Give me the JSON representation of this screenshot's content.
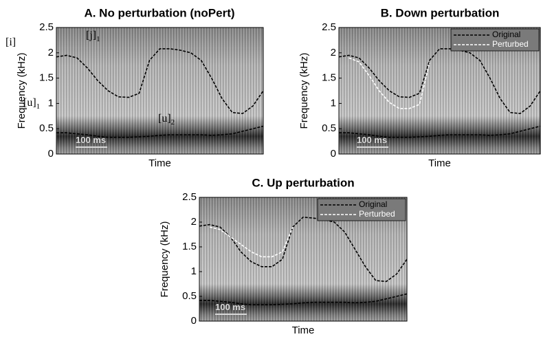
{
  "chart_data": [
    {
      "type": "line",
      "title": "A. No perturbation (noPert)",
      "xlabel": "Time",
      "ylabel": "Frequency (kHz)",
      "ylim": [
        0,
        2.5
      ],
      "yticks": [
        0,
        0.5,
        1,
        1.5,
        2,
        2.5
      ],
      "categories": [
        null,
        null,
        null,
        null,
        null,
        null,
        null,
        null,
        null,
        null,
        null,
        null,
        null,
        null,
        null,
        null,
        null,
        null,
        null,
        null,
        null
      ],
      "series": [
        {
          "color": "#000000",
          "values": [
            1.92,
            1.95,
            1.9,
            1.7,
            1.45,
            1.25,
            1.13,
            1.12,
            1.2,
            1.85,
            2.08,
            2.08,
            2.05,
            2.0,
            1.85,
            1.5,
            1.1,
            0.82,
            0.8,
            0.95,
            1.25
          ]
        },
        {
          "color": "#000000",
          "values": [
            0.42,
            0.42,
            0.4,
            0.38,
            0.35,
            0.33,
            0.33,
            0.33,
            0.34,
            0.35,
            0.37,
            0.38,
            0.38,
            0.38,
            0.38,
            0.37,
            0.38,
            0.4,
            0.45,
            0.5,
            0.55
          ]
        }
      ],
      "annotations": [
        {
          "text": "[i]"
        },
        {
          "text": "[j]",
          "sub": "1"
        },
        {
          "text": "[u]",
          "sub": "1"
        },
        {
          "text": "[u]",
          "sub": "2"
        },
        {
          "text": "100 ms"
        }
      ]
    },
    {
      "type": "line",
      "title": "B. Down perturbation",
      "xlabel": "Time",
      "ylabel": "Frequency (kHz)",
      "ylim": [
        0,
        2.5
      ],
      "yticks": [
        0,
        0.5,
        1,
        1.5,
        2,
        2.5
      ],
      "legend": "upper right",
      "categories": [
        null,
        null,
        null,
        null,
        null,
        null,
        null,
        null,
        null,
        null,
        null,
        null,
        null,
        null,
        null,
        null,
        null,
        null,
        null,
        null,
        null
      ],
      "series": [
        {
          "name": "Original",
          "color": "#000000",
          "values": [
            1.92,
            1.95,
            1.9,
            1.7,
            1.45,
            1.25,
            1.13,
            1.12,
            1.2,
            1.85,
            2.08,
            2.08,
            2.05,
            2.0,
            1.85,
            1.5,
            1.1,
            0.82,
            0.8,
            0.95,
            1.25
          ]
        },
        {
          "color": "#000000",
          "values": [
            0.42,
            0.42,
            0.4,
            0.38,
            0.35,
            0.33,
            0.33,
            0.33,
            0.34,
            0.35,
            0.37,
            0.38,
            0.38,
            0.38,
            0.38,
            0.37,
            0.38,
            0.4,
            0.45,
            0.5,
            0.55
          ]
        },
        {
          "name": "Perturbed",
          "color": "#ffffff",
          "values": [
            null,
            1.9,
            1.82,
            1.55,
            1.25,
            1.02,
            0.9,
            0.9,
            0.98,
            1.8,
            null,
            null,
            null,
            null,
            null,
            null,
            null,
            null,
            null,
            null,
            null
          ]
        }
      ],
      "annotations": [
        {
          "text": "100 ms"
        }
      ]
    },
    {
      "type": "line",
      "title": "C. Up perturbation",
      "xlabel": "Time",
      "ylabel": "Frequency (kHz)",
      "ylim": [
        0,
        2.5
      ],
      "yticks": [
        0,
        0.5,
        1,
        1.5,
        2,
        2.5
      ],
      "legend": "upper right",
      "categories": [
        null,
        null,
        null,
        null,
        null,
        null,
        null,
        null,
        null,
        null,
        null,
        null,
        null,
        null,
        null,
        null,
        null,
        null,
        null,
        null,
        null
      ],
      "series": [
        {
          "name": "Original",
          "color": "#000000",
          "values": [
            1.92,
            1.95,
            1.9,
            1.7,
            1.4,
            1.2,
            1.1,
            1.1,
            1.25,
            1.9,
            2.1,
            2.08,
            2.05,
            2.0,
            1.8,
            1.45,
            1.1,
            0.82,
            0.8,
            0.95,
            1.25
          ]
        },
        {
          "color": "#000000",
          "values": [
            0.42,
            0.42,
            0.4,
            0.38,
            0.35,
            0.33,
            0.33,
            0.33,
            0.34,
            0.35,
            0.37,
            0.38,
            0.38,
            0.38,
            0.38,
            0.37,
            0.38,
            0.4,
            0.45,
            0.5,
            0.55
          ]
        },
        {
          "name": "Perturbed",
          "color": "#ffffff",
          "values": [
            null,
            1.9,
            1.85,
            1.7,
            1.55,
            1.4,
            1.3,
            1.3,
            1.4,
            1.9,
            null,
            null,
            null,
            null,
            null,
            null,
            null,
            null,
            null,
            null,
            null
          ]
        }
      ],
      "annotations": [
        {
          "text": "100 ms"
        }
      ]
    }
  ]
}
